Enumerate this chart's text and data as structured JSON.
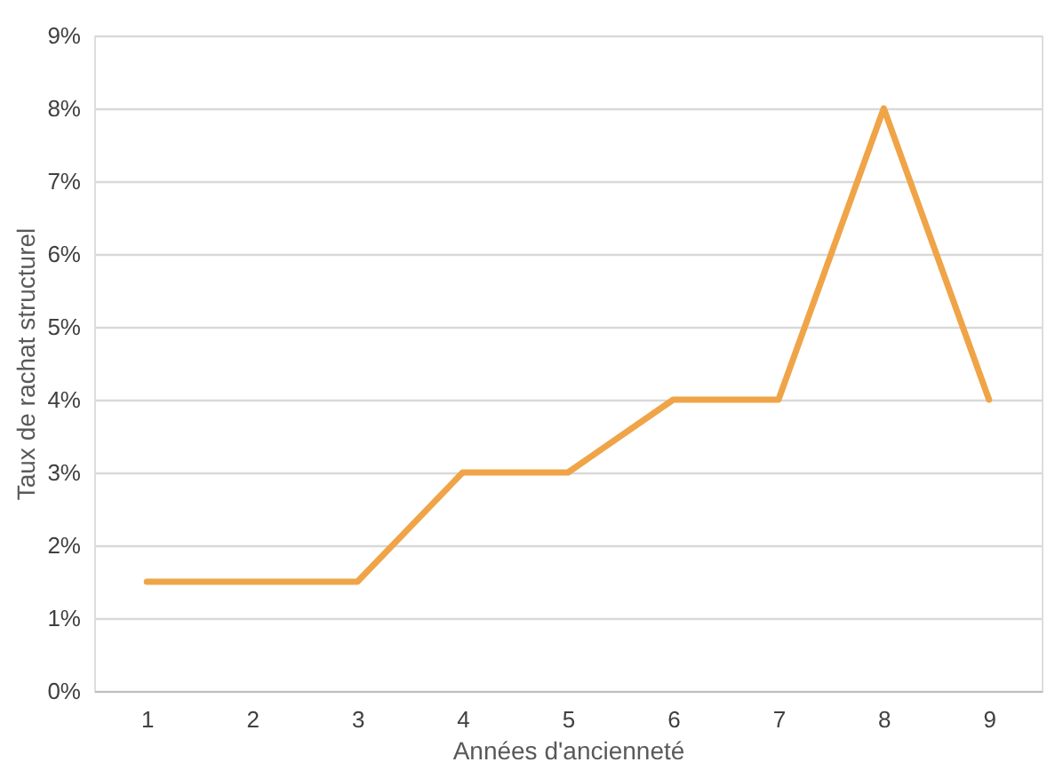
{
  "chart_data": {
    "type": "line",
    "xlabel": "Années d'ancienneté",
    "ylabel": "Taux de rachat structurel",
    "categories": [
      "1",
      "2",
      "3",
      "4",
      "5",
      "6",
      "7",
      "8",
      "9"
    ],
    "series": [
      {
        "color": "#f0a448",
        "values": [
          1.5,
          1.5,
          1.5,
          3,
          3,
          4,
          4,
          8,
          4
        ]
      }
    ],
    "ylim": [
      0,
      9
    ],
    "yticks": [
      {
        "value": 0,
        "label": "0%"
      },
      {
        "value": 1,
        "label": "1%"
      },
      {
        "value": 2,
        "label": "2%"
      },
      {
        "value": 3,
        "label": "3%"
      },
      {
        "value": 4,
        "label": "4%"
      },
      {
        "value": 5,
        "label": "5%"
      },
      {
        "value": 6,
        "label": "6%"
      },
      {
        "value": 7,
        "label": "7%"
      },
      {
        "value": 8,
        "label": "8%"
      },
      {
        "value": 9,
        "label": "9%"
      }
    ],
    "grid": "y",
    "legend": false,
    "marker": "none",
    "line_style": "solid"
  }
}
